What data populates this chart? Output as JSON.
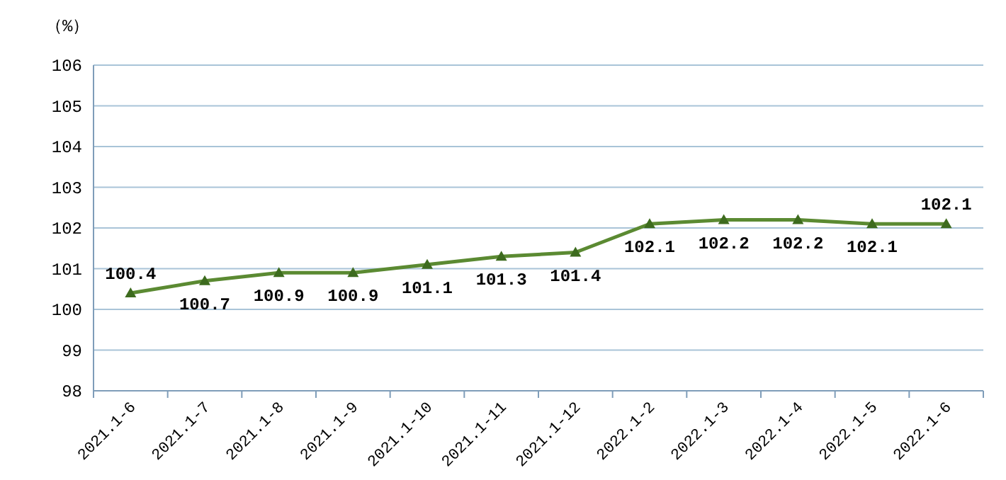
{
  "chart_data": {
    "type": "line",
    "ylabel": "（%）",
    "categories": [
      "2021.1-6",
      "2021.1-7",
      "2021.1-8",
      "2021.1-9",
      "2021.1-10",
      "2021.1-11",
      "2021.1-12",
      "2022.1-2",
      "2022.1-3",
      "2022.1-4",
      "2022.1-5",
      "2022.1-6"
    ],
    "series": [
      {
        "color": "#5b8a32",
        "values": [
          100.4,
          100.7,
          100.9,
          100.9,
          101.1,
          101.3,
          101.4,
          102.1,
          102.2,
          102.2,
          102.1,
          102.1
        ]
      }
    ],
    "ylim": [
      98,
      106
    ],
    "yticks": [
      98,
      99,
      100,
      101,
      102,
      103,
      104,
      105,
      106
    ],
    "grid": "y",
    "marker": "triangle",
    "data_labels": true
  }
}
